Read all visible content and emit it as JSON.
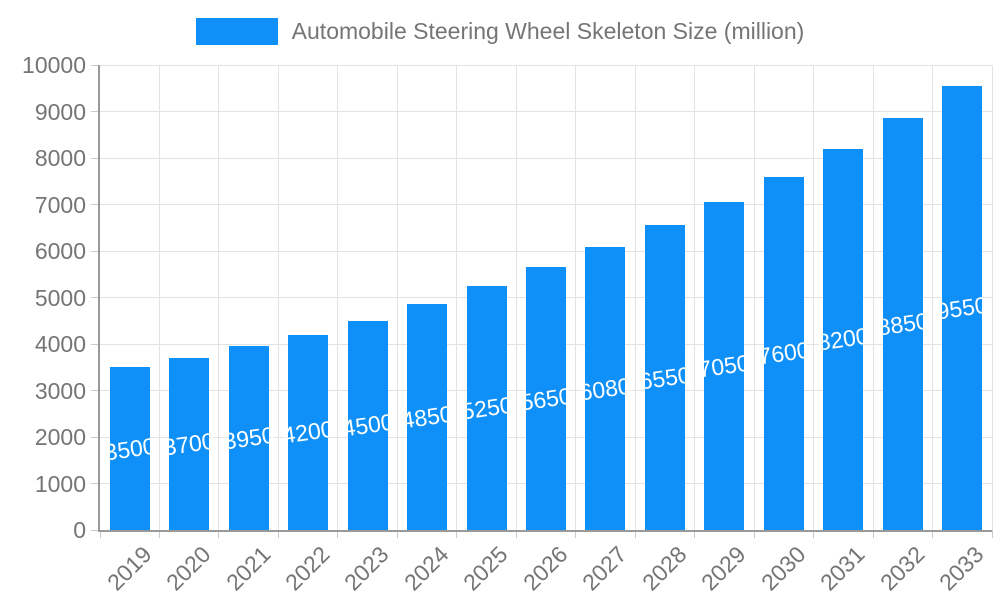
{
  "legend": {
    "label": "Automobile Steering Wheel Skeleton Size (million)"
  },
  "colors": {
    "bar": "#0e90f8",
    "axis_label": "#757575",
    "grid_line": "#e3e3e3",
    "axis_line": "#999999",
    "tick": "#c9c9c9",
    "bar_label": "#ffffff"
  },
  "chart_data": {
    "type": "bar",
    "title": "Automobile Steering Wheel Skeleton Size (million)",
    "series": [
      {
        "name": "Automobile Steering Wheel Skeleton Size (million)",
        "values": [
          3500,
          3700,
          3950,
          4200,
          4500,
          4850,
          5250,
          5650,
          6080,
          6550,
          7050,
          7600,
          8200,
          8850,
          9550
        ]
      }
    ],
    "categories": [
      "2019",
      "2020",
      "2021",
      "2022",
      "2023",
      "2024",
      "2025",
      "2026",
      "2027",
      "2028",
      "2029",
      "2030",
      "2031",
      "2032",
      "2033"
    ],
    "xlabel": "",
    "ylabel": "",
    "ylim": [
      0,
      10000
    ],
    "yticks": [
      0,
      1000,
      2000,
      3000,
      4000,
      5000,
      6000,
      7000,
      8000,
      9000,
      10000
    ],
    "grid": true,
    "legend_position": "top-center",
    "value_label_position": "inside-middle"
  }
}
